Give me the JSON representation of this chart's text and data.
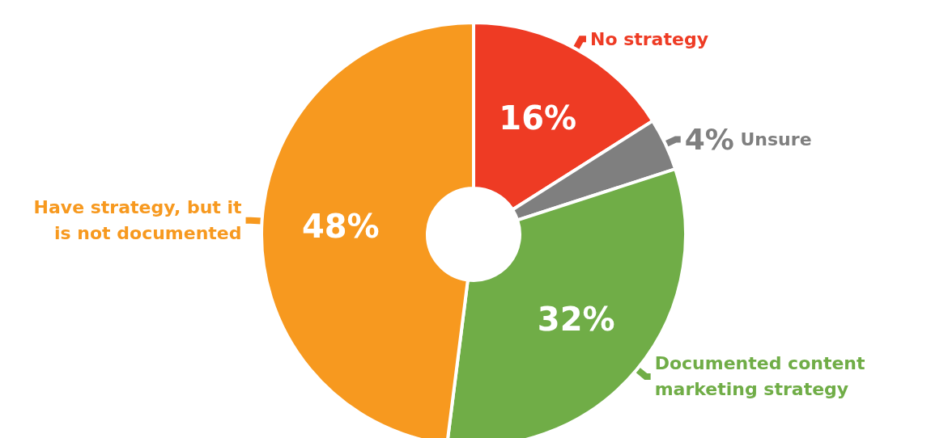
{
  "chart_data": {
    "type": "donut",
    "categories": [
      "No strategy",
      "Unsure",
      "Documented content marketing strategy",
      "Have strategy, but it is not documented"
    ],
    "values": [
      16,
      4,
      32,
      48
    ],
    "colors": [
      "#ee3b24",
      "#7f7f7f",
      "#70ad47",
      "#f7991f"
    ],
    "value_labels": [
      "16%",
      "4%",
      "32%",
      "48%"
    ]
  }
}
